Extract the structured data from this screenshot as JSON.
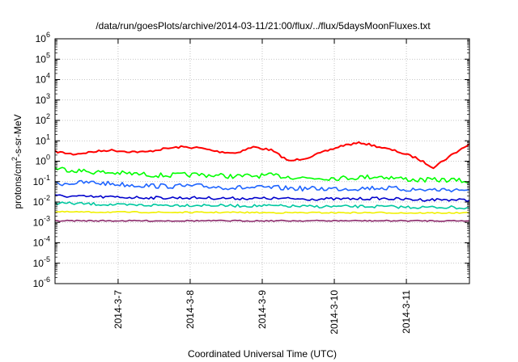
{
  "chart_data": {
    "type": "line",
    "title": "/data/run/goesPlots/archive/2014-03-11/21:00/flux/../flux/5daysMoonFluxes.txt",
    "xlabel": "Coordinated Universal Time (UTC)",
    "ylabel": "protons/cm²-s-sr-MeV",
    "y_scale": "log",
    "ylim": [
      1e-06,
      1000000.0
    ],
    "xlim": [
      "2014-03-06 03:00",
      "2014-03-11 21:00"
    ],
    "y_ticks": [
      {
        "base": "10",
        "exp": "-6",
        "value": 1e-06
      },
      {
        "base": "10",
        "exp": "-5",
        "value": 1e-05
      },
      {
        "base": "10",
        "exp": "-4",
        "value": 0.0001
      },
      {
        "base": "10",
        "exp": "-3",
        "value": 0.001
      },
      {
        "base": "10",
        "exp": "-2",
        "value": 0.01
      },
      {
        "base": "10",
        "exp": "-1",
        "value": 0.1
      },
      {
        "base": "10",
        "exp": "0",
        "value": 1
      },
      {
        "base": "10",
        "exp": "1",
        "value": 10
      },
      {
        "base": "10",
        "exp": "2",
        "value": 100
      },
      {
        "base": "10",
        "exp": "3",
        "value": 1000
      },
      {
        "base": "10",
        "exp": "4",
        "value": 10000
      },
      {
        "base": "10",
        "exp": "5",
        "value": 100000
      },
      {
        "base": "10",
        "exp": "6",
        "value": 1000000
      }
    ],
    "x_ticks": [
      {
        "label": "2014-3-7",
        "value": "2014-03-07 00:00"
      },
      {
        "label": "2014-3-8",
        "value": "2014-03-08 00:00"
      },
      {
        "label": "2014-3-9",
        "value": "2014-03-09 00:00"
      },
      {
        "label": "2014-3-10",
        "value": "2014-03-10 00:00"
      },
      {
        "label": "2014-3-11",
        "value": "2014-03-11 00:00"
      }
    ],
    "grid": true,
    "legend": "none",
    "series": [
      {
        "color": "#ff0000",
        "x": [
          "2014-03-06 03:00",
          "2014-03-06 09:00",
          "2014-03-06 15:00",
          "2014-03-06 21:00",
          "2014-03-07 03:00",
          "2014-03-07 09:00",
          "2014-03-07 15:00",
          "2014-03-07 21:00",
          "2014-03-08 03:00",
          "2014-03-08 09:00",
          "2014-03-08 15:00",
          "2014-03-08 21:00",
          "2014-03-09 03:00",
          "2014-03-09 09:00",
          "2014-03-09 15:00",
          "2014-03-09 21:00",
          "2014-03-10 03:00",
          "2014-03-10 09:00",
          "2014-03-10 15:00",
          "2014-03-10 21:00",
          "2014-03-11 03:00",
          "2014-03-11 09:00",
          "2014-03-11 15:00",
          "2014-03-11 21:00"
        ],
        "y": [
          3,
          2.2,
          2.8,
          3.5,
          3,
          2.8,
          4,
          5,
          4.5,
          3,
          2.5,
          5,
          3.5,
          1,
          1.5,
          3,
          6,
          8,
          5,
          3,
          1.5,
          0.5,
          2,
          7
        ]
      },
      {
        "color": "#00ff00",
        "x": [
          "2014-03-06 03:00",
          "2014-03-06 15:00",
          "2014-03-07 03:00",
          "2014-03-07 15:00",
          "2014-03-08 03:00",
          "2014-03-08 15:00",
          "2014-03-09 03:00",
          "2014-03-09 15:00",
          "2014-03-10 03:00",
          "2014-03-10 15:00",
          "2014-03-11 03:00",
          "2014-03-11 15:00",
          "2014-03-11 21:00"
        ],
        "y": [
          0.45,
          0.3,
          0.25,
          0.2,
          0.22,
          0.18,
          0.2,
          0.15,
          0.15,
          0.18,
          0.12,
          0.12,
          0.1
        ]
      },
      {
        "color": "#1e64ff",
        "x": [
          "2014-03-06 03:00",
          "2014-03-06 15:00",
          "2014-03-07 03:00",
          "2014-03-07 15:00",
          "2014-03-08 03:00",
          "2014-03-08 15:00",
          "2014-03-09 03:00",
          "2014-03-09 15:00",
          "2014-03-10 03:00",
          "2014-03-10 15:00",
          "2014-03-11 03:00",
          "2014-03-11 15:00",
          "2014-03-11 21:00"
        ],
        "y": [
          0.08,
          0.09,
          0.07,
          0.06,
          0.06,
          0.05,
          0.05,
          0.045,
          0.045,
          0.05,
          0.04,
          0.04,
          0.04
        ]
      },
      {
        "color": "#0000cc",
        "x": [
          "2014-03-06 03:00",
          "2014-03-06 15:00",
          "2014-03-07 03:00",
          "2014-03-07 15:00",
          "2014-03-08 03:00",
          "2014-03-08 15:00",
          "2014-03-09 03:00",
          "2014-03-09 15:00",
          "2014-03-10 03:00",
          "2014-03-10 15:00",
          "2014-03-11 03:00",
          "2014-03-11 15:00",
          "2014-03-11 21:00"
        ],
        "y": [
          0.02,
          0.018,
          0.017,
          0.016,
          0.016,
          0.015,
          0.015,
          0.014,
          0.014,
          0.015,
          0.013,
          0.013,
          0.012
        ]
      },
      {
        "color": "#00c8a0",
        "x": [
          "2014-03-06 03:00",
          "2014-03-06 15:00",
          "2014-03-07 03:00",
          "2014-03-07 15:00",
          "2014-03-08 03:00",
          "2014-03-08 15:00",
          "2014-03-09 03:00",
          "2014-03-09 15:00",
          "2014-03-10 03:00",
          "2014-03-10 15:00",
          "2014-03-11 03:00",
          "2014-03-11 15:00",
          "2014-03-11 21:00"
        ],
        "y": [
          0.009,
          0.008,
          0.007,
          0.007,
          0.007,
          0.0065,
          0.0065,
          0.006,
          0.006,
          0.006,
          0.0055,
          0.0055,
          0.005
        ]
      },
      {
        "color": "#f0f000",
        "x": [
          "2014-03-06 03:00",
          "2014-03-06 15:00",
          "2014-03-07 03:00",
          "2014-03-07 15:00",
          "2014-03-08 03:00",
          "2014-03-08 15:00",
          "2014-03-09 03:00",
          "2014-03-09 15:00",
          "2014-03-10 03:00",
          "2014-03-10 15:00",
          "2014-03-11 03:00",
          "2014-03-11 15:00",
          "2014-03-11 21:00"
        ],
        "y": [
          0.0033,
          0.0032,
          0.0032,
          0.0031,
          0.0031,
          0.0031,
          0.003,
          0.003,
          0.003,
          0.003,
          0.0029,
          0.0029,
          0.0029
        ]
      },
      {
        "color": "#8b2a6b",
        "x": [
          "2014-03-06 03:00",
          "2014-03-06 15:00",
          "2014-03-07 03:00",
          "2014-03-07 15:00",
          "2014-03-08 03:00",
          "2014-03-08 15:00",
          "2014-03-09 03:00",
          "2014-03-09 15:00",
          "2014-03-10 03:00",
          "2014-03-10 15:00",
          "2014-03-11 03:00",
          "2014-03-11 15:00",
          "2014-03-11 21:00"
        ],
        "y": [
          0.0012,
          0.0012,
          0.0012,
          0.0012,
          0.0012,
          0.0012,
          0.0012,
          0.0012,
          0.0012,
          0.0012,
          0.0012,
          0.0012,
          0.0012
        ]
      }
    ]
  }
}
